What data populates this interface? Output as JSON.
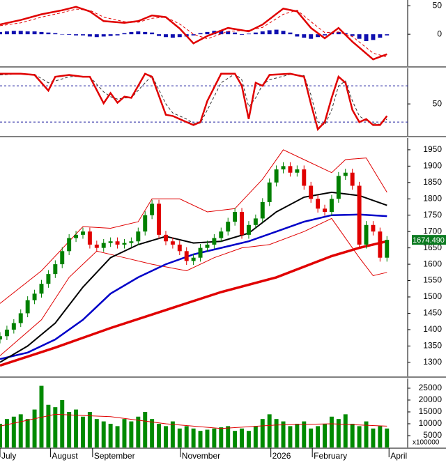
{
  "chart_data": [
    {
      "type": "line",
      "xlim": [
        0,
        59
      ],
      "ylim": [
        -56,
        60
      ],
      "yticks": [
        0,
        50
      ],
      "series": [
        {
          "type": "bar",
          "color": "#1010b0",
          "values": [
            4,
            5,
            6,
            6,
            5,
            5,
            4,
            3,
            2,
            0,
            -1,
            -2,
            -2,
            -4,
            -5,
            -4,
            -3,
            -2,
            2,
            4,
            5,
            4,
            3,
            -3,
            -5,
            -6,
            -5,
            -4,
            -2,
            2,
            4,
            6,
            7,
            5,
            3,
            -1,
            1,
            3,
            5,
            7,
            8,
            6,
            3,
            -4,
            -6,
            -8,
            -5,
            -2,
            3,
            4,
            2,
            -3,
            -8,
            -12,
            -10,
            -6,
            -2
          ]
        },
        {
          "type": "line",
          "color": "#e00000",
          "width": 1,
          "dash": true,
          "x": [
            0,
            3,
            6,
            9,
            11,
            13,
            15,
            18,
            20,
            22,
            24,
            26,
            28,
            30,
            33,
            36,
            38,
            41,
            43,
            45,
            47,
            49,
            51,
            54,
            56
          ],
          "values": [
            15,
            20,
            30,
            38,
            44,
            42,
            30,
            22,
            21,
            28,
            30,
            18,
            0,
            -8,
            5,
            7,
            12,
            35,
            42,
            22,
            3,
            4,
            -4,
            -33,
            -40
          ]
        },
        {
          "type": "line",
          "color": "#e00000",
          "width": 2.5,
          "x": [
            0,
            3,
            6,
            9,
            11,
            13,
            15,
            18,
            20,
            22,
            24,
            26,
            28,
            30,
            33,
            36,
            38,
            41,
            43,
            45,
            47,
            49,
            51,
            54,
            56
          ],
          "values": [
            17,
            25,
            35,
            42,
            48,
            40,
            23,
            20,
            23,
            33,
            30,
            10,
            -16,
            -3,
            11,
            5,
            17,
            45,
            40,
            11,
            -7,
            11,
            -13,
            -44,
            -35
          ]
        }
      ]
    },
    {
      "type": "line",
      "xlim": [
        0,
        59
      ],
      "ylim": [
        -3,
        109
      ],
      "yticks": [
        50
      ],
      "levels": [
        20,
        80
      ],
      "level_color": "#2020a0",
      "series": [
        {
          "type": "line",
          "color": "#303030",
          "width": 1,
          "dash": true,
          "x": [
            0,
            3,
            5,
            7,
            8,
            10,
            12,
            13,
            15,
            16,
            17,
            18,
            19,
            21,
            22,
            24,
            25,
            27,
            28,
            29,
            30,
            32,
            34,
            35,
            36,
            37,
            38,
            39,
            42,
            44,
            45,
            46,
            47,
            48,
            49,
            50,
            51,
            52,
            53,
            54,
            55,
            56
          ],
          "values": [
            98,
            100,
            99,
            85,
            88,
            95,
            96,
            95,
            70,
            62,
            58,
            60,
            60,
            85,
            97,
            50,
            35,
            25,
            18,
            18,
            40,
            85,
            100,
            90,
            45,
            60,
            82,
            90,
            99,
            97,
            65,
            20,
            15,
            40,
            80,
            88,
            55,
            30,
            22,
            18,
            16,
            25
          ]
        },
        {
          "type": "line",
          "color": "#e00000",
          "width": 2.5,
          "x": [
            0,
            3,
            5,
            7,
            8,
            10,
            12,
            13,
            15,
            16,
            17,
            18,
            19,
            21,
            22,
            24,
            25,
            27,
            28,
            29,
            30,
            32,
            34,
            35,
            36,
            37,
            38,
            39,
            42,
            44,
            45,
            46,
            47,
            48,
            49,
            50,
            51,
            52,
            53,
            54,
            55,
            56
          ],
          "values": [
            100,
            100,
            98,
            72,
            95,
            98,
            95,
            95,
            51,
            68,
            52,
            62,
            60,
            100,
            95,
            32,
            30,
            20,
            15,
            20,
            55,
            100,
            100,
            80,
            25,
            85,
            80,
            98,
            100,
            95,
            50,
            8,
            20,
            60,
            95,
            85,
            40,
            20,
            25,
            15,
            15,
            30
          ]
        }
      ]
    },
    {
      "type": "candlestick",
      "xlim": [
        0,
        59
      ],
      "ylim": [
        1257,
        1986
      ],
      "yticks": [
        1300,
        1350,
        1400,
        1450,
        1500,
        1550,
        1600,
        1650,
        1700,
        1750,
        1800,
        1850,
        1900,
        1950
      ],
      "last_price": {
        "value": 1674.49,
        "label": "1674.490"
      },
      "last_color": "#0b7a20",
      "series": [
        {
          "type": "line",
          "color": "#e00000",
          "width": 1,
          "x": [
            0,
            6,
            12,
            16,
            20,
            22,
            26,
            30,
            34,
            38,
            41,
            44,
            48,
            50,
            53,
            56
          ],
          "values": [
            1480,
            1580,
            1715,
            1710,
            1730,
            1800,
            1800,
            1760,
            1770,
            1860,
            1950,
            1920,
            1880,
            1920,
            1925,
            1820
          ]
        },
        {
          "type": "line",
          "color": "#e00000",
          "width": 1,
          "x": [
            0,
            6,
            10,
            14,
            18,
            22,
            27,
            31,
            35,
            39,
            44,
            48,
            52,
            54,
            56
          ],
          "values": [
            1320,
            1430,
            1560,
            1640,
            1620,
            1600,
            1580,
            1620,
            1650,
            1660,
            1700,
            1740,
            1620,
            1565,
            1575
          ]
        },
        {
          "type": "line",
          "color": "#e00000",
          "width": 3.5,
          "x": [
            0,
            8,
            16,
            24,
            32,
            40,
            48,
            52,
            56
          ],
          "values": [
            1290,
            1345,
            1405,
            1460,
            1515,
            1560,
            1625,
            1650,
            1670
          ]
        },
        {
          "type": "line",
          "color": "#0000c8",
          "width": 2.5,
          "x": [
            0,
            4,
            8,
            12,
            16,
            20,
            24,
            28,
            32,
            36,
            40,
            44,
            48,
            52,
            56
          ],
          "values": [
            1310,
            1330,
            1370,
            1430,
            1510,
            1560,
            1600,
            1630,
            1650,
            1670,
            1700,
            1730,
            1750,
            1752,
            1747
          ]
        },
        {
          "type": "line",
          "color": "#000000",
          "width": 2,
          "x": [
            0,
            4,
            8,
            12,
            16,
            20,
            24,
            28,
            32,
            36,
            40,
            44,
            48,
            52,
            56
          ],
          "values": [
            1300,
            1350,
            1420,
            1530,
            1620,
            1660,
            1685,
            1665,
            1670,
            1695,
            1760,
            1805,
            1820,
            1810,
            1780
          ]
        },
        {
          "type": "candlestick",
          "up_color": "#008000",
          "down_color": "#e00000",
          "open": [
            1370,
            1380,
            1400,
            1420,
            1450,
            1490,
            1510,
            1540,
            1570,
            1600,
            1640,
            1680,
            1690,
            1700,
            1660,
            1650,
            1665,
            1670,
            1660,
            1665,
            1670,
            1700,
            1750,
            1785,
            1690,
            1670,
            1660,
            1640,
            1610,
            1620,
            1650,
            1660,
            1680,
            1700,
            1730,
            1760,
            1690,
            1720,
            1740,
            1790,
            1850,
            1890,
            1900,
            1880,
            1890,
            1840,
            1800,
            1770,
            1760,
            1800,
            1870,
            1880,
            1840,
            1660,
            1720,
            1700,
            1620
          ],
          "high": [
            1392,
            1412,
            1432,
            1462,
            1502,
            1522,
            1552,
            1582,
            1612,
            1652,
            1692,
            1702,
            1712,
            1712,
            1672,
            1677,
            1682,
            1682,
            1677,
            1682,
            1712,
            1762,
            1797,
            1797,
            1702,
            1682,
            1672,
            1652,
            1632,
            1662,
            1672,
            1692,
            1712,
            1742,
            1772,
            1772,
            1732,
            1752,
            1802,
            1862,
            1902,
            1912,
            1912,
            1902,
            1902,
            1852,
            1812,
            1782,
            1812,
            1882,
            1892,
            1892,
            1852,
            1732,
            1732,
            1712,
            1686
          ],
          "low": [
            1358,
            1368,
            1388,
            1408,
            1438,
            1478,
            1498,
            1528,
            1558,
            1588,
            1628,
            1668,
            1678,
            1648,
            1638,
            1638,
            1653,
            1648,
            1648,
            1653,
            1658,
            1688,
            1738,
            1678,
            1658,
            1648,
            1628,
            1598,
            1598,
            1608,
            1638,
            1648,
            1668,
            1688,
            1718,
            1678,
            1678,
            1708,
            1728,
            1778,
            1838,
            1878,
            1868,
            1868,
            1828,
            1788,
            1758,
            1748,
            1748,
            1788,
            1858,
            1828,
            1648,
            1648,
            1688,
            1608,
            1608
          ],
          "close": [
            1380,
            1400,
            1420,
            1450,
            1490,
            1510,
            1540,
            1570,
            1600,
            1640,
            1680,
            1690,
            1700,
            1660,
            1650,
            1665,
            1670,
            1660,
            1665,
            1670,
            1700,
            1750,
            1785,
            1690,
            1670,
            1660,
            1640,
            1610,
            1620,
            1650,
            1660,
            1680,
            1700,
            1730,
            1760,
            1690,
            1720,
            1740,
            1790,
            1850,
            1890,
            1900,
            1880,
            1890,
            1840,
            1800,
            1770,
            1760,
            1800,
            1870,
            1880,
            1840,
            1660,
            1720,
            1700,
            1620,
            1674.49
          ]
        }
      ]
    },
    {
      "type": "bar",
      "xlim": [
        0,
        59
      ],
      "ylim": [
        0,
        29100
      ],
      "yticks": [
        5000,
        10000,
        15000,
        20000,
        25000
      ],
      "unit_label": "x100000",
      "xticks": [
        {
          "value": 0,
          "label": "July"
        },
        {
          "value": 7.3,
          "label": "August"
        },
        {
          "value": 13.4,
          "label": "September"
        },
        {
          "value": 26.1,
          "label": "November"
        },
        {
          "value": 39.2,
          "label": "2026"
        },
        {
          "value": 45.2,
          "label": "February"
        },
        {
          "value": 56.3,
          "label": "April"
        }
      ],
      "series": [
        {
          "type": "bar",
          "color": "#008a00",
          "values": [
            10000,
            12000,
            13000,
            14000,
            12000,
            16000,
            26000,
            18000,
            17000,
            20000,
            15000,
            16000,
            13000,
            15000,
            12000,
            11000,
            10000,
            9000,
            12000,
            11000,
            13000,
            15000,
            12000,
            10000,
            9000,
            11000,
            8000,
            9000,
            8000,
            7000,
            7500,
            8000,
            8500,
            9000,
            7000,
            8000,
            7000,
            9000,
            12000,
            14000,
            12000,
            11000,
            9000,
            10000,
            11000,
            8000,
            9000,
            10000,
            13000,
            12000,
            14000,
            10000,
            9000,
            11000,
            8000,
            9000,
            8000
          ]
        },
        {
          "type": "line",
          "color": "#e00000",
          "width": 1,
          "x": [
            0,
            8,
            16,
            24,
            32,
            40,
            48,
            56
          ],
          "values": [
            9000,
            14000,
            13000,
            10000,
            8000,
            9500,
            10000,
            9000
          ]
        }
      ]
    }
  ]
}
